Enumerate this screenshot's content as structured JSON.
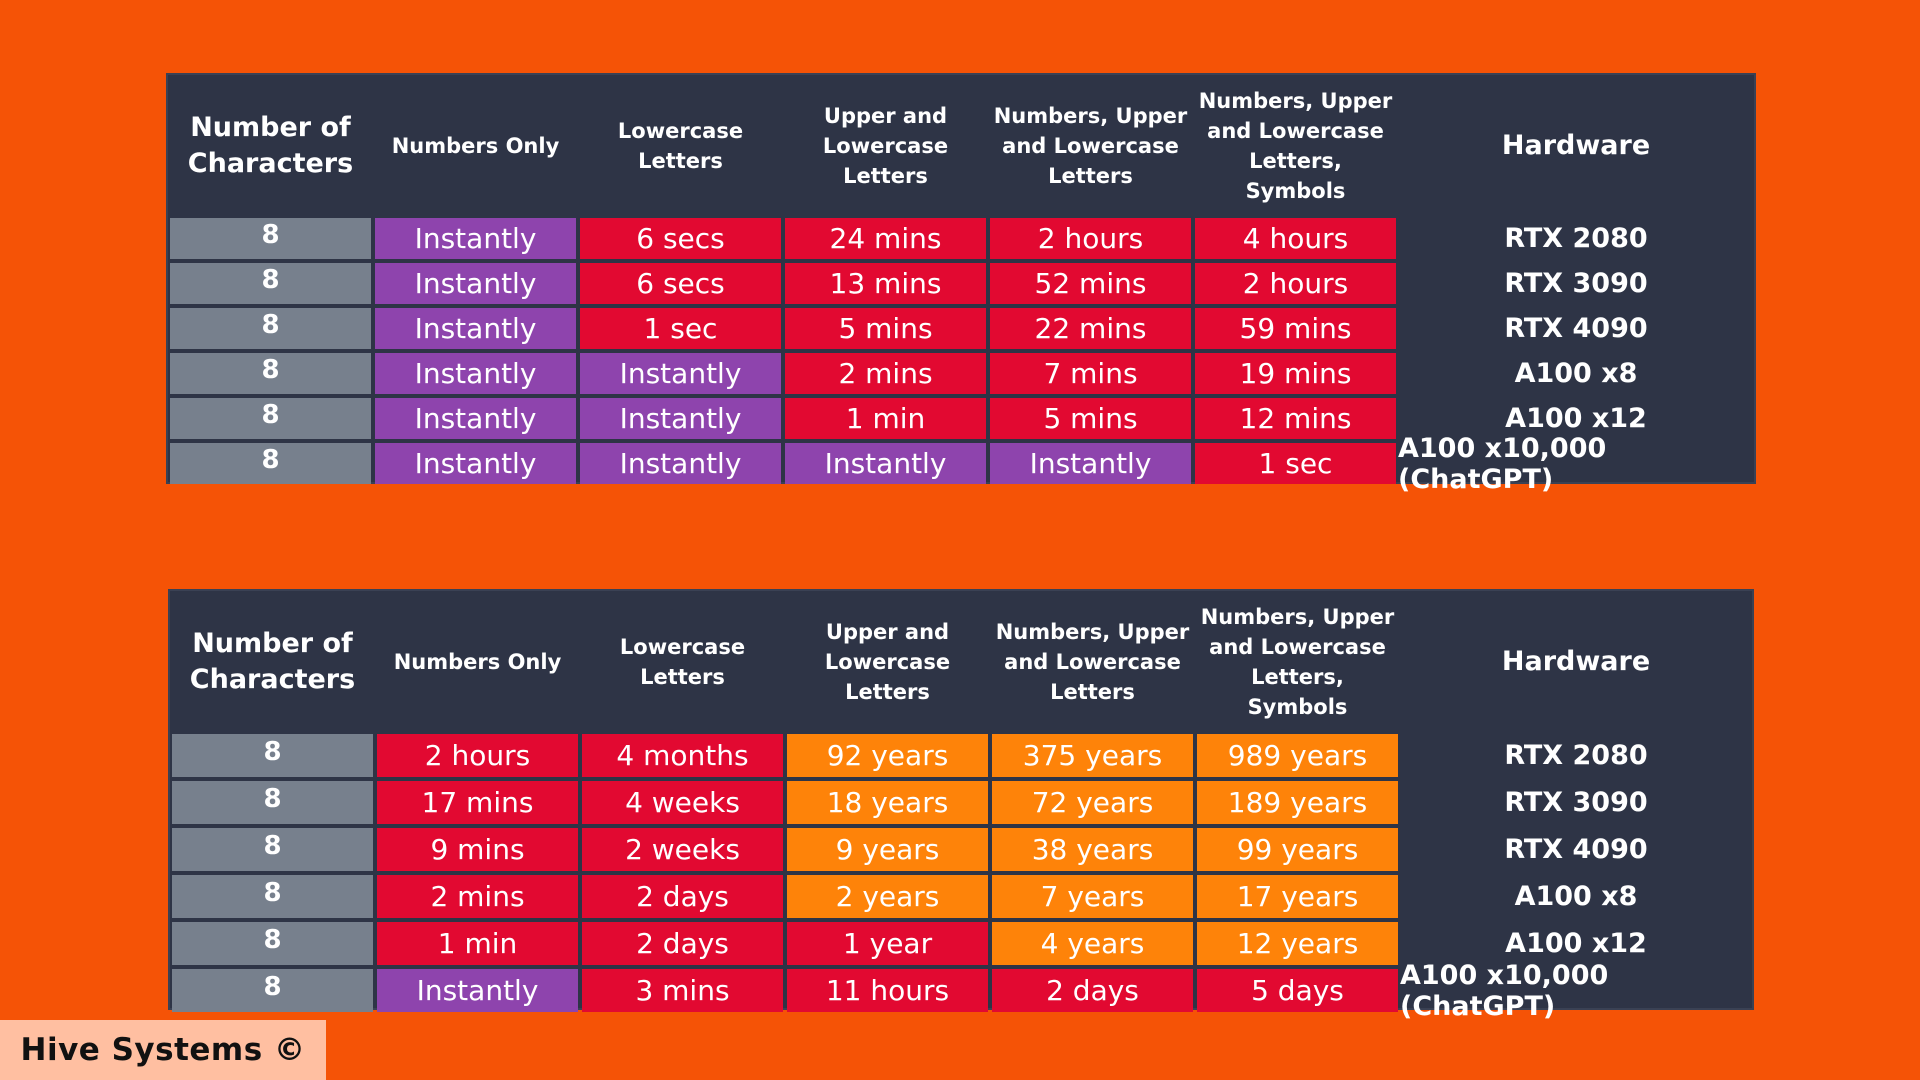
{
  "colors": {
    "background": "#f55306",
    "table_bg": "#2e3446",
    "characters_cell": "#77808d",
    "instantly": "#8e44ad",
    "short_time": "#e20931",
    "long_time": "#fe8309",
    "watermark_bg": "#ffbfa1"
  },
  "tables": [
    {
      "headers": [
        "Number of\nCharacters",
        "Numbers Only",
        "Lowercase\nLetters",
        "Upper and\nLowercase\nLetters",
        "Numbers, Upper\nand Lowercase\nLetters",
        "Numbers, Upper\nand Lowercase\nLetters, Symbols",
        "Hardware"
      ],
      "rows": [
        {
          "chars": "8",
          "values": [
            "Instantly",
            "6 secs",
            "24 mins",
            "2 hours",
            "4 hours"
          ],
          "colors": [
            "purple",
            "red",
            "red",
            "red",
            "red"
          ],
          "hardware": "RTX 2080"
        },
        {
          "chars": "8",
          "values": [
            "Instantly",
            "6 secs",
            "13 mins",
            "52 mins",
            "2 hours"
          ],
          "colors": [
            "purple",
            "red",
            "red",
            "red",
            "red"
          ],
          "hardware": "RTX 3090"
        },
        {
          "chars": "8",
          "values": [
            "Instantly",
            "1 sec",
            "5 mins",
            "22 mins",
            "59 mins"
          ],
          "colors": [
            "purple",
            "red",
            "red",
            "red",
            "red"
          ],
          "hardware": "RTX 4090"
        },
        {
          "chars": "8",
          "values": [
            "Instantly",
            "Instantly",
            "2 mins",
            "7 mins",
            "19 mins"
          ],
          "colors": [
            "purple",
            "purple",
            "red",
            "red",
            "red"
          ],
          "hardware": "A100 x8"
        },
        {
          "chars": "8",
          "values": [
            "Instantly",
            "Instantly",
            "1 min",
            "5 mins",
            "12 mins"
          ],
          "colors": [
            "purple",
            "purple",
            "red",
            "red",
            "red"
          ],
          "hardware": "A100 x12"
        },
        {
          "chars": "8",
          "values": [
            "Instantly",
            "Instantly",
            "Instantly",
            "Instantly",
            "1 sec"
          ],
          "colors": [
            "purple",
            "purple",
            "purple",
            "purple",
            "red"
          ],
          "hardware": "A100 x10,000 (ChatGPT)"
        }
      ]
    },
    {
      "headers": [
        "Number of\nCharacters",
        "Numbers Only",
        "Lowercase\nLetters",
        "Upper and\nLowercase\nLetters",
        "Numbers, Upper\nand Lowercase\nLetters",
        "Numbers, Upper\nand Lowercase\nLetters, Symbols",
        "Hardware"
      ],
      "rows": [
        {
          "chars": "8",
          "values": [
            "2 hours",
            "4 months",
            "92 years",
            "375 years",
            "989 years"
          ],
          "colors": [
            "red",
            "red",
            "orange",
            "orange",
            "orange"
          ],
          "hardware": "RTX 2080"
        },
        {
          "chars": "8",
          "values": [
            "17 mins",
            "4 weeks",
            "18 years",
            "72 years",
            "189 years"
          ],
          "colors": [
            "red",
            "red",
            "orange",
            "orange",
            "orange"
          ],
          "hardware": "RTX 3090"
        },
        {
          "chars": "8",
          "values": [
            "9 mins",
            "2 weeks",
            "9 years",
            "38 years",
            "99 years"
          ],
          "colors": [
            "red",
            "red",
            "orange",
            "orange",
            "orange"
          ],
          "hardware": "RTX 4090"
        },
        {
          "chars": "8",
          "values": [
            "2 mins",
            "2 days",
            "2 years",
            "7 years",
            "17 years"
          ],
          "colors": [
            "red",
            "red",
            "orange",
            "orange",
            "orange"
          ],
          "hardware": "A100 x8"
        },
        {
          "chars": "8",
          "values": [
            "1 min",
            "2 days",
            "1 year",
            "4 years",
            "12 years"
          ],
          "colors": [
            "red",
            "red",
            "red",
            "orange",
            "orange"
          ],
          "hardware": "A100 x12"
        },
        {
          "chars": "8",
          "values": [
            "Instantly",
            "3 mins",
            "11 hours",
            "2 days",
            "5 days"
          ],
          "colors": [
            "purple",
            "red",
            "red",
            "red",
            "red"
          ],
          "hardware": "A100 x10,000 (ChatGPT)"
        }
      ]
    }
  ],
  "watermark": "Hive Systems ©"
}
